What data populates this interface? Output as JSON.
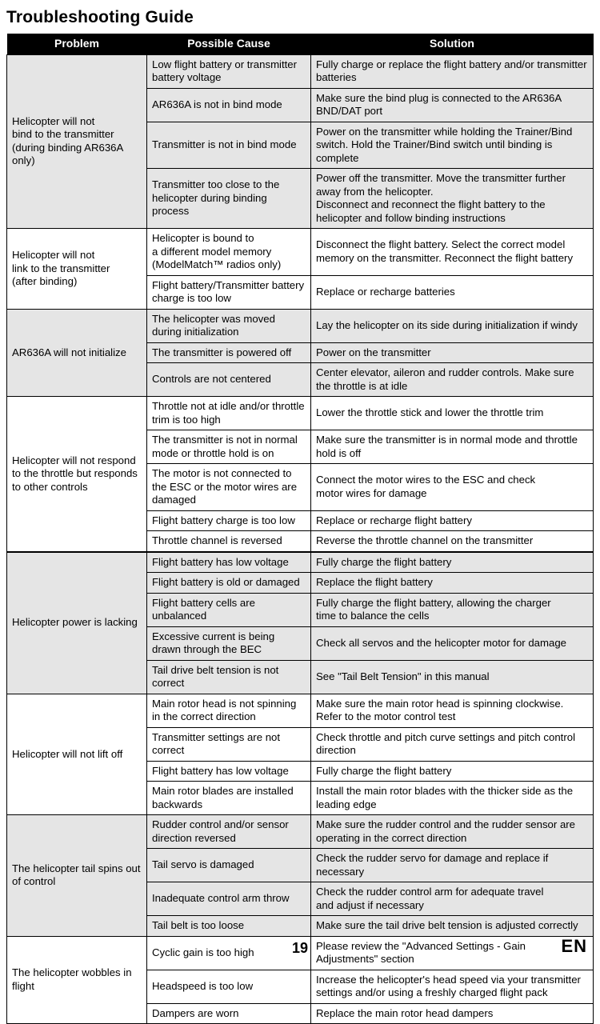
{
  "title": "Troubleshooting Guide",
  "headers": {
    "problem": "Problem",
    "cause": "Possible Cause",
    "solution": "Solution"
  },
  "groups": [
    {
      "problem": "Helicopter will not\nbind to the transmitter\n(during binding AR636A only)",
      "shade": true,
      "rows": [
        {
          "cause": "Low flight battery or transmitter battery voltage",
          "solution": "Fully charge or replace the flight battery and/or transmitter batteries"
        },
        {
          "cause": "AR636A is not in bind mode",
          "solution": "Make sure the bind plug is connected to the AR636A BND/DAT port"
        },
        {
          "cause": "Transmitter is not in bind mode",
          "solution": "Power on the transmitter while holding the Trainer/Bind switch. Hold the Trainer/Bind switch until binding is complete"
        },
        {
          "cause": "Transmitter too close to the helicopter during binding process",
          "solution": "Power off the transmitter. Move the transmitter further away from the helicopter.\nDisconnect and reconnect the flight battery to the helicopter and follow binding instructions"
        }
      ]
    },
    {
      "problem": "Helicopter will not\nlink to the transmitter\n(after binding)",
      "shade": false,
      "rows": [
        {
          "cause": "Helicopter is bound to\na different model memory\n(ModelMatch™ radios only)",
          "solution": "Disconnect the flight battery. Select the correct model memory on the transmitter. Reconnect the flight battery"
        },
        {
          "cause": "Flight battery/Transmitter battery charge is too low",
          "solution": "Replace or recharge batteries"
        }
      ]
    },
    {
      "problem": "AR636A will not initialize",
      "shade": true,
      "rows": [
        {
          "cause": "The helicopter was moved during initialization",
          "solution": "Lay the helicopter on its side during initialization if windy"
        },
        {
          "cause": "The transmitter is powered off",
          "solution": "Power on the transmitter"
        },
        {
          "cause": "Controls are not centered",
          "solution": "Center elevator, aileron and rudder controls. Make sure the throttle is at idle"
        }
      ]
    },
    {
      "problem": "Helicopter will not respond to the throttle but responds to other controls",
      "shade": false,
      "rows": [
        {
          "cause": "Throttle not at idle and/or throttle trim is too high",
          "solution": "Lower the throttle stick and lower the throttle trim"
        },
        {
          "cause": "The transmitter is not in normal mode or throttle hold is on",
          "solution": "Make sure the transmitter is in normal mode and throttle hold is off"
        },
        {
          "cause": "The motor is not connected to the ESC or the motor wires are damaged",
          "solution": "Connect the motor wires to the ESC and check\nmotor wires for damage"
        },
        {
          "cause": "Flight battery charge is too low",
          "solution": "Replace or recharge flight battery"
        },
        {
          "cause": "Throttle channel is reversed",
          "solution": "Reverse the throttle channel on the transmitter"
        }
      ]
    },
    {
      "problem": "Helicopter power is lacking",
      "shade": true,
      "heavyTop": true,
      "rows": [
        {
          "cause": "Flight battery has low voltage",
          "solution": "Fully charge the flight battery"
        },
        {
          "cause": "Flight battery is old or damaged",
          "solution": "Replace the flight battery"
        },
        {
          "cause": "Flight battery cells are unbalanced",
          "solution": "Fully charge the flight battery, allowing the charger\ntime to balance the cells"
        },
        {
          "cause": "Excessive current is being drawn through the BEC",
          "solution": "Check all servos and the helicopter motor for damage"
        },
        {
          "cause": "Tail drive belt tension is not correct",
          "solution": "See \"Tail Belt Tension\" in this manual"
        }
      ]
    },
    {
      "problem": "Helicopter will not lift off",
      "shade": false,
      "rows": [
        {
          "cause": "Main rotor head is not spinning in the correct direction",
          "solution": "Make sure the main rotor head is spinning clockwise.\n Refer to the motor control test"
        },
        {
          "cause": "Transmitter settings are not correct",
          "solution": "Check throttle and pitch curve settings and pitch control direction"
        },
        {
          "cause": "Flight battery has low voltage",
          "solution": "Fully charge the flight battery"
        },
        {
          "cause": "Main rotor blades are installed backwards",
          "solution": "Install the main rotor blades with the thicker side as the leading edge"
        }
      ]
    },
    {
      "problem": "The helicopter tail spins out of control",
      "shade": true,
      "rows": [
        {
          "cause": "Rudder control and/or sensor direction reversed",
          "solution": "Make sure the rudder control and the rudder sensor are operating in the correct direction"
        },
        {
          "cause": "Tail servo is damaged",
          "solution": "Check the rudder servo for damage and replace if necessary"
        },
        {
          "cause": "Inadequate control arm throw",
          "solution": "Check the rudder control arm for adequate travel\nand adjust if necessary"
        },
        {
          "cause": "Tail belt is too loose",
          "solution": "Make sure the tail  drive belt tension is adjusted correctly"
        }
      ]
    },
    {
      "problem": "The helicopter wobbles in flight",
      "shade": false,
      "rows": [
        {
          "cause": "Cyclic gain is too high",
          "solution": "Please review the \"Advanced Settings - Gain Adjustments\" section"
        },
        {
          "cause": "Headspeed is too low",
          "solution": "Increase the helicopter's head speed via your transmitter settings and/or using a freshly charged flight pack"
        },
        {
          "cause": "Dampers are worn",
          "solution": "Replace the main rotor head dampers"
        }
      ]
    }
  ],
  "pageNumber": "19",
  "lang": "EN"
}
